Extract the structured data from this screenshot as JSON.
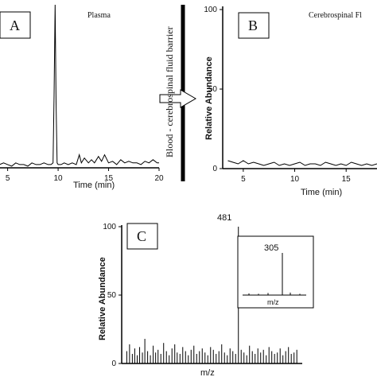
{
  "chart_data": [
    {
      "panel": "A",
      "type": "line",
      "title": "Plasma",
      "xlabel": "Time (min)",
      "ylabel": "",
      "xlim": [
        3,
        20
      ],
      "ylim": [
        0,
        100
      ],
      "xticks": [
        5,
        10,
        15,
        20
      ],
      "series": [
        {
          "x": [
            3.0,
            3.4,
            3.8,
            4.2,
            4.6,
            5.0,
            5.4,
            5.8,
            6.2,
            6.6,
            7.0,
            7.4,
            7.8,
            8.2,
            8.6,
            9.0,
            9.3,
            9.5,
            9.6,
            9.7,
            9.8,
            9.9,
            10.0,
            10.3,
            10.6,
            11.0,
            11.4,
            11.8,
            12.1,
            12.3,
            12.6,
            13.0,
            13.3,
            13.6,
            14.0,
            14.3,
            14.6,
            15.0,
            15.4,
            15.8,
            16.2,
            16.6,
            17.0,
            17.4,
            17.8,
            18.2,
            18.6,
            19.0,
            19.4,
            19.8,
            20.0
          ],
          "y": [
            2,
            3,
            1,
            2,
            3,
            2,
            1,
            3,
            2,
            2,
            1,
            3,
            2,
            2,
            3,
            2,
            2,
            3,
            45,
            100,
            40,
            3,
            2,
            2,
            3,
            2,
            3,
            2,
            8,
            3,
            6,
            3,
            5,
            3,
            7,
            4,
            8,
            3,
            4,
            2,
            5,
            3,
            4,
            3,
            3,
            2,
            4,
            3,
            5,
            3,
            3
          ]
        }
      ]
    },
    {
      "panel": "B",
      "type": "line",
      "title": "Cerebrospinal Fl",
      "xlabel": "Time (min)",
      "ylabel": "Relative Abundance",
      "xlim": [
        3,
        18
      ],
      "ylim": [
        0,
        100
      ],
      "yticks": [
        0,
        50,
        100
      ],
      "xticks": [
        5,
        10,
        15
      ],
      "series": [
        {
          "x": [
            3.5,
            4.0,
            4.5,
            5.0,
            5.5,
            6.0,
            6.5,
            7.0,
            7.5,
            8.0,
            8.5,
            9.0,
            9.5,
            10.0,
            10.5,
            11.0,
            11.5,
            12.0,
            12.5,
            13.0,
            13.5,
            14.0,
            14.5,
            15.0,
            15.5,
            16.0,
            16.5,
            17.0,
            17.5,
            18.0
          ],
          "y": [
            5,
            4,
            3,
            5,
            3,
            4,
            3,
            2,
            3,
            4,
            2,
            3,
            2,
            3,
            4,
            2,
            3,
            3,
            2,
            4,
            3,
            2,
            3,
            2,
            4,
            3,
            2,
            3,
            2,
            3
          ]
        }
      ]
    },
    {
      "panel": "C",
      "type": "bar",
      "title": "",
      "xlabel": "m/z",
      "ylabel": "Relative Abundance",
      "xlim": [
        150,
        660
      ],
      "ylim": [
        0,
        100
      ],
      "yticks": [
        0,
        50,
        100
      ],
      "annotations": [
        "481"
      ],
      "peaks": {
        "mz": [
          160,
          168,
          176,
          183,
          190,
          197,
          205,
          212,
          220,
          228,
          236,
          243,
          250,
          258,
          266,
          274,
          282,
          290,
          298,
          305,
          313,
          321,
          329,
          337,
          345,
          353,
          361,
          369,
          377,
          385,
          393,
          401,
          409,
          417,
          425,
          433,
          441,
          449,
          457,
          465,
          473,
          481,
          489,
          497,
          505,
          513,
          521,
          529,
          537,
          545,
          553,
          561,
          569,
          577,
          585,
          593,
          601,
          609,
          617,
          625,
          633,
          641,
          649
        ],
        "intensity": [
          9,
          14,
          7,
          11,
          6,
          12,
          8,
          18,
          9,
          6,
          13,
          8,
          10,
          7,
          15,
          9,
          6,
          11,
          14,
          8,
          7,
          12,
          9,
          6,
          10,
          13,
          7,
          9,
          11,
          8,
          6,
          12,
          10,
          7,
          9,
          14,
          8,
          6,
          11,
          9,
          7,
          100,
          10,
          8,
          6,
          13,
          9,
          7,
          11,
          8,
          10,
          6,
          12,
          9,
          7,
          8,
          11,
          6,
          9,
          12,
          7,
          8,
          10
        ]
      },
      "inset": {
        "label": "305",
        "xlabel": "m/z",
        "peaks_mz": [
          200,
          230,
          260,
          305,
          330,
          360
        ],
        "peaks_intensity": [
          4,
          3,
          5,
          100,
          6,
          3
        ]
      }
    }
  ],
  "labels": {
    "panel_a": "A",
    "panel_b": "B",
    "panel_c": "C",
    "barrier": "Blood - cerebrospinal fluid barrier"
  }
}
